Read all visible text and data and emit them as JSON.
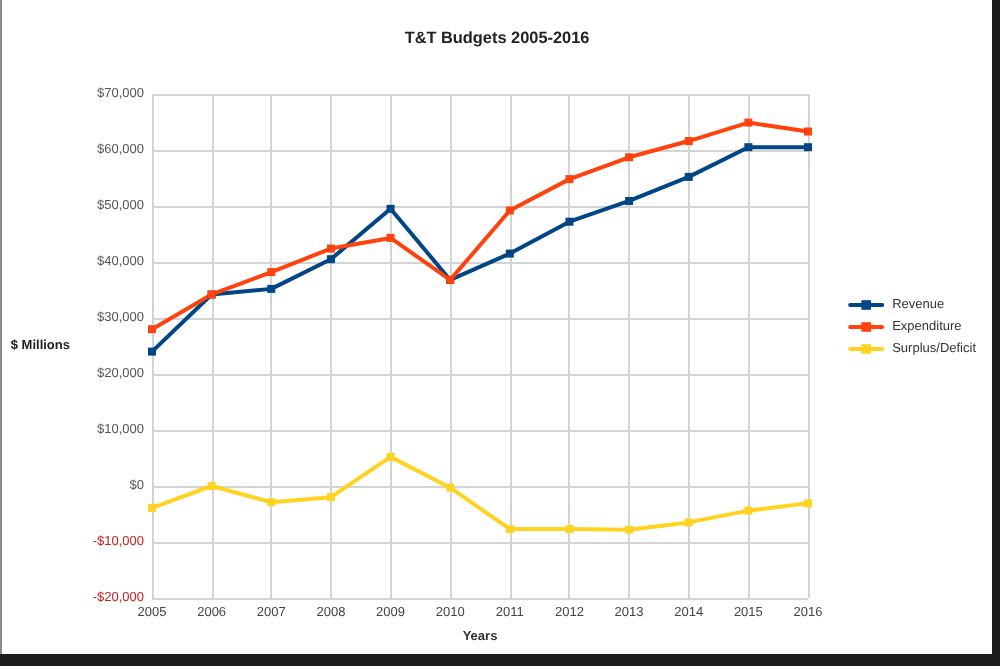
{
  "chart_data": {
    "type": "line",
    "title": "T&T Budgets 2005-2016",
    "xlabel": "Years",
    "ylabel": "$ Millions",
    "categories": [
      "2005",
      "2006",
      "2007",
      "2008",
      "2009",
      "2010",
      "2011",
      "2012",
      "2013",
      "2014",
      "2015",
      "2016"
    ],
    "series": [
      {
        "name": "Revenue",
        "color": "#004586",
        "values": [
          24000,
          34200,
          35200,
          40500,
          49500,
          36800,
          41500,
          47200,
          50900,
          55200,
          60500,
          60500
        ]
      },
      {
        "name": "Expenditure",
        "color": "#ff420e",
        "values": [
          28000,
          34200,
          38200,
          42400,
          44300,
          36800,
          49200,
          54800,
          58700,
          61600,
          64900,
          63300
        ]
      },
      {
        "name": "Surplus/Deficit",
        "color": "#ffd320",
        "values": [
          -3900,
          0,
          -2900,
          -2000,
          5200,
          -300,
          -7700,
          -7700,
          -7800,
          -6500,
          -4400,
          -3100
        ]
      }
    ],
    "ylim": [
      -20000,
      70000
    ],
    "yticks": [
      {
        "value": -20000,
        "label": "-$20,000"
      },
      {
        "value": -10000,
        "label": "-$10,000"
      },
      {
        "value": 0,
        "label": "$0"
      },
      {
        "value": 10000,
        "label": "$10,000"
      },
      {
        "value": 20000,
        "label": "$20,000"
      },
      {
        "value": 30000,
        "label": "$30,000"
      },
      {
        "value": 40000,
        "label": "$40,000"
      },
      {
        "value": 50000,
        "label": "$50,000"
      },
      {
        "value": 60000,
        "label": "$60,000"
      },
      {
        "value": 70000,
        "label": "$70,000"
      }
    ],
    "grid": true,
    "legend": "right",
    "marker": "square",
    "line_style": "solid"
  }
}
